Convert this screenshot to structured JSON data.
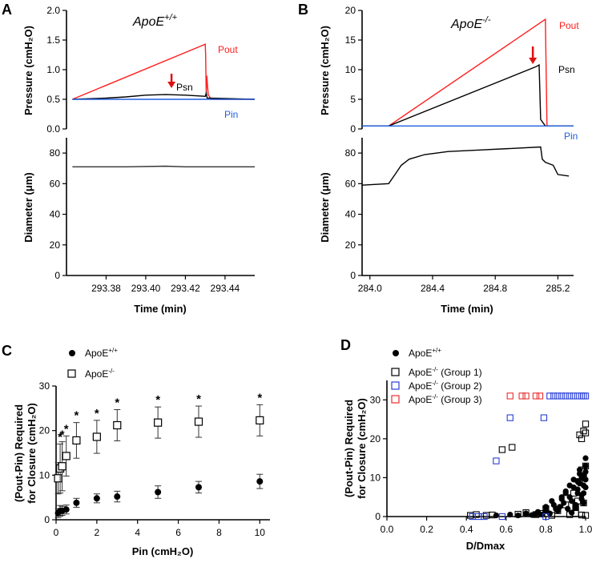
{
  "panels": {
    "A": "A",
    "B": "B",
    "C": "C",
    "D": "D"
  },
  "chart_data": [
    {
      "id": "A_pressure",
      "type": "line",
      "title": "ApoE+/+",
      "title_base": "ApoE",
      "title_sup": "+/+",
      "ylabel": "Pressure (cmH₂O)",
      "ylim": [
        0,
        2.0
      ],
      "yticks": [
        "0.0",
        "0.5",
        "1.0",
        "1.5",
        "2.0"
      ],
      "xlim": [
        293.36,
        293.455
      ],
      "series": [
        {
          "name": "Pout",
          "color": "#ff2020",
          "x": [
            293.363,
            293.43,
            293.4302,
            293.4305,
            293.4308,
            293.4315,
            293.433,
            293.455
          ],
          "y": [
            0.5,
            1.43,
            1.25,
            0.6,
            0.9,
            0.58,
            0.5,
            0.5
          ]
        },
        {
          "name": "Psn",
          "color": "#000000",
          "x": [
            293.363,
            293.38,
            293.39,
            293.4,
            293.41,
            293.42,
            293.43,
            293.4305,
            293.431,
            293.455
          ],
          "y": [
            0.5,
            0.52,
            0.54,
            0.57,
            0.58,
            0.57,
            0.55,
            0.6,
            0.52,
            0.5
          ]
        },
        {
          "name": "Pin",
          "color": "#2060e0",
          "x": [
            293.363,
            293.455
          ],
          "y": [
            0.5,
            0.5
          ]
        }
      ],
      "labels": {
        "Pout": "Pout",
        "Psn": "Psn",
        "Pin": "Pin"
      },
      "arrow_x": 293.413
    },
    {
      "id": "A_diameter",
      "type": "line",
      "ylabel": "Diameter (μm)",
      "ylim": [
        0,
        90
      ],
      "yticks": [
        "0",
        "20",
        "40",
        "60",
        "80"
      ],
      "xlim": [
        293.36,
        293.455
      ],
      "xlabel": "Time  (min)",
      "xticks": [
        "293.38",
        "293.40",
        "293.42",
        "293.44"
      ],
      "xtick_values": [
        293.38,
        293.4,
        293.42,
        293.44
      ],
      "series": [
        {
          "name": "Diameter",
          "color": "#333333",
          "x": [
            293.363,
            293.39,
            293.41,
            293.42,
            293.455
          ],
          "y": [
            71,
            71,
            71.4,
            71,
            71
          ]
        }
      ]
    },
    {
      "id": "B_pressure",
      "type": "line",
      "title": "ApoE-/-",
      "title_base": "ApoE",
      "title_sup": "-/-",
      "ylabel": "Pressure (cmH₂O)",
      "ylim": [
        0,
        20
      ],
      "yticks": [
        "0",
        "5",
        "10",
        "15",
        "20"
      ],
      "xlim": [
        283.95,
        285.3
      ],
      "series": [
        {
          "name": "Pout",
          "color": "#ff2020",
          "x": [
            283.95,
            284.12,
            285.12,
            285.13,
            285.3
          ],
          "y": [
            0.5,
            0.5,
            18.5,
            0.5,
            0.5
          ]
        },
        {
          "name": "Psn",
          "color": "#000000",
          "x": [
            283.95,
            284.12,
            285.06,
            285.08,
            285.09,
            285.12,
            285.3
          ],
          "y": [
            0.5,
            0.5,
            10.5,
            10.8,
            1.6,
            0.5,
            0.5
          ]
        },
        {
          "name": "Pin",
          "color": "#2060e0",
          "x": [
            283.95,
            285.3
          ],
          "y": [
            0.5,
            0.5
          ]
        }
      ],
      "labels": {
        "Pout": "Pout",
        "Psn": "Psn",
        "Pin": "Pin"
      },
      "arrow_x": 285.04
    },
    {
      "id": "B_diameter",
      "type": "line",
      "ylabel": "Diameter (μm)",
      "ylim": [
        0,
        90
      ],
      "yticks": [
        "0",
        "20",
        "40",
        "60",
        "80"
      ],
      "xlim": [
        283.95,
        285.3
      ],
      "xlabel": "Time  (min)",
      "xticks": [
        "284.0",
        "284.4",
        "284.8",
        "285.2"
      ],
      "xtick_values": [
        284.0,
        284.4,
        284.8,
        285.2
      ],
      "series": [
        {
          "name": "Diameter",
          "color": "#000000",
          "x": [
            283.95,
            284.12,
            284.16,
            284.2,
            284.25,
            284.35,
            284.5,
            284.7,
            284.9,
            285.09,
            285.1,
            285.12,
            285.17,
            285.2,
            285.27
          ],
          "y": [
            59,
            60,
            66,
            72,
            76,
            79,
            81,
            82,
            83,
            84,
            76,
            74,
            72,
            66,
            65
          ]
        }
      ]
    },
    {
      "id": "C",
      "type": "scatter",
      "xlabel": "Pin (cmH₂O)",
      "ylabel_lines": [
        "(Pout-Pin) Required",
        "for Closure (cmH₂O)"
      ],
      "xlim": [
        0,
        10.5
      ],
      "ylim": [
        0,
        30
      ],
      "xticks": [
        "0",
        "2",
        "4",
        "6",
        "8",
        "10"
      ],
      "xtick_values": [
        0,
        2,
        4,
        6,
        8,
        10
      ],
      "yticks": [
        "0",
        "10",
        "20",
        "30"
      ],
      "ytick_values": [
        0,
        10,
        20,
        30
      ],
      "series": [
        {
          "name": "ApoE+/+",
          "name_base": "ApoE",
          "name_sup": "+/+",
          "marker": "filled-circle",
          "x": [
            0.1,
            0.2,
            0.3,
            0.5,
            1,
            2,
            3,
            5,
            7,
            10
          ],
          "y": [
            1.5,
            2.0,
            2.0,
            2.3,
            3.8,
            4.8,
            5.2,
            6.2,
            7.3,
            8.6
          ],
          "err": [
            1.0,
            1.2,
            1.0,
            1.0,
            1.0,
            1.0,
            1.2,
            1.4,
            1.3,
            1.6
          ]
        },
        {
          "name": "ApoE-/-",
          "name_base": "ApoE",
          "name_sup": "-/-",
          "marker": "open-square",
          "x": [
            0.1,
            0.2,
            0.3,
            0.5,
            1,
            2,
            3,
            5,
            7,
            10
          ],
          "y": [
            9.3,
            11.5,
            12.0,
            14.3,
            17.8,
            18.6,
            21.2,
            21.8,
            22.0,
            22.3
          ],
          "err": [
            3.5,
            5.5,
            5.5,
            4.5,
            4.0,
            3.7,
            3.5,
            3.5,
            3.5,
            3.5
          ]
        }
      ],
      "annotations": {
        "symbol": "*",
        "x": [
          0.2,
          0.3,
          0.5,
          1,
          2,
          3,
          5,
          7,
          10
        ]
      }
    },
    {
      "id": "D",
      "type": "scatter",
      "xlabel": "D/Dmax",
      "ylabel_lines": [
        "(Pout-Pin) Required",
        "for Closure (cmH₂O)"
      ],
      "xlim": [
        0,
        1.0
      ],
      "ylim": [
        0,
        35
      ],
      "xticks": [
        "0.0",
        "0.2",
        "0.4",
        "0.6",
        "0.8",
        "1.0"
      ],
      "xtick_values": [
        0,
        0.2,
        0.4,
        0.6,
        0.8,
        1.0
      ],
      "yticks": [
        "0",
        "10",
        "20",
        "30"
      ],
      "ytick_values": [
        0,
        10,
        20,
        30
      ],
      "series": [
        {
          "name": "ApoE+/+",
          "name_base": "ApoE",
          "name_sup": "+/+",
          "color": "#000000",
          "marker": "filled-circle",
          "x": [
            0.55,
            0.62,
            0.66,
            0.7,
            0.73,
            0.76,
            0.8,
            0.82,
            0.84,
            0.86,
            0.88,
            0.9,
            0.91,
            0.92,
            0.93,
            0.94,
            0.95,
            0.96,
            0.97,
            0.98,
            0.99,
            1.0,
            0.85,
            0.89,
            0.94,
            0.96,
            0.98,
            0.99,
            1.0,
            0.78,
            0.83,
            0.87,
            0.9,
            0.93,
            0.97,
            0.99,
            1.0,
            0.75,
            0.8,
            0.88,
            0.95,
            0.97,
            0.99,
            1.0,
            0.98,
            0.92,
            0.96,
            1.0
          ],
          "y": [
            0.3,
            0.5,
            0.3,
            0.8,
            0.4,
            1.2,
            2.5,
            0.8,
            3.0,
            1.5,
            5.0,
            6.0,
            2.0,
            8.0,
            4.0,
            9.5,
            3.0,
            7.0,
            11.0,
            5.5,
            10.5,
            13.0,
            2.0,
            3.5,
            7.5,
            9.0,
            4.5,
            8.0,
            15.0,
            0.5,
            4.0,
            2.5,
            6.5,
            1.0,
            12.0,
            6.0,
            9.5,
            0.7,
            1.5,
            4.5,
            2.2,
            8.5,
            3.5,
            11.5,
            10.0,
            5.0,
            6.0,
            7.5
          ]
        },
        {
          "name": "ApoE-/- (Group 1)",
          "name_base": "ApoE",
          "name_sup": "-/-",
          "name_suffix": " (Group 1)",
          "color": "#000000",
          "marker": "open-square",
          "x": [
            0.42,
            0.45,
            0.5,
            0.53,
            0.58,
            0.63,
            0.66,
            0.7,
            0.75,
            0.78,
            0.8,
            0.83,
            0.86,
            0.9,
            0.92,
            0.94,
            0.95,
            0.96,
            0.97,
            0.98,
            0.99,
            1.0,
            0.97,
            0.98,
            0.99,
            1.0,
            0.99,
            1.0,
            0.95,
            0.98,
            1.0
          ],
          "y": [
            0.3,
            0.5,
            0.3,
            0.4,
            17.2,
            17.8,
            0.6,
            1.0,
            0.5,
            0.8,
            2.0,
            0.3,
            1.5,
            3.0,
            0.5,
            6.0,
            2.5,
            4.0,
            21.0,
            20.0,
            22.0,
            23.8,
            9.0,
            12.0,
            10.0,
            13.0,
            3.5,
            21.5,
            0.8,
            0.4,
            0.3
          ]
        },
        {
          "name": "ApoE-/- (Group 2)",
          "name_base": "ApoE",
          "name_sup": "-/-",
          "name_suffix": " (Group 2)",
          "color": "#2a3fd6",
          "marker": "open-square",
          "x": [
            0.43,
            0.46,
            0.49,
            0.55,
            0.58,
            0.62,
            0.79,
            0.82,
            0.84,
            0.86,
            0.88,
            0.9,
            0.92,
            0.94,
            0.96,
            0.98,
            0.99,
            1.0,
            0.8
          ],
          "y": [
            0,
            0,
            0,
            14.3,
            0,
            25.4,
            25.4,
            31,
            31,
            31,
            31,
            31,
            31,
            31,
            31,
            31,
            31,
            31,
            0
          ]
        },
        {
          "name": "ApoE-/- (Group 3)",
          "name_base": "ApoE",
          "name_sup": "-/-",
          "name_suffix": " (Group 3)",
          "color": "#e83030",
          "marker": "open-square",
          "x": [
            0.62,
            0.68,
            0.7,
            0.75,
            0.77
          ],
          "y": [
            31,
            31,
            31,
            31,
            31
          ]
        }
      ]
    }
  ]
}
